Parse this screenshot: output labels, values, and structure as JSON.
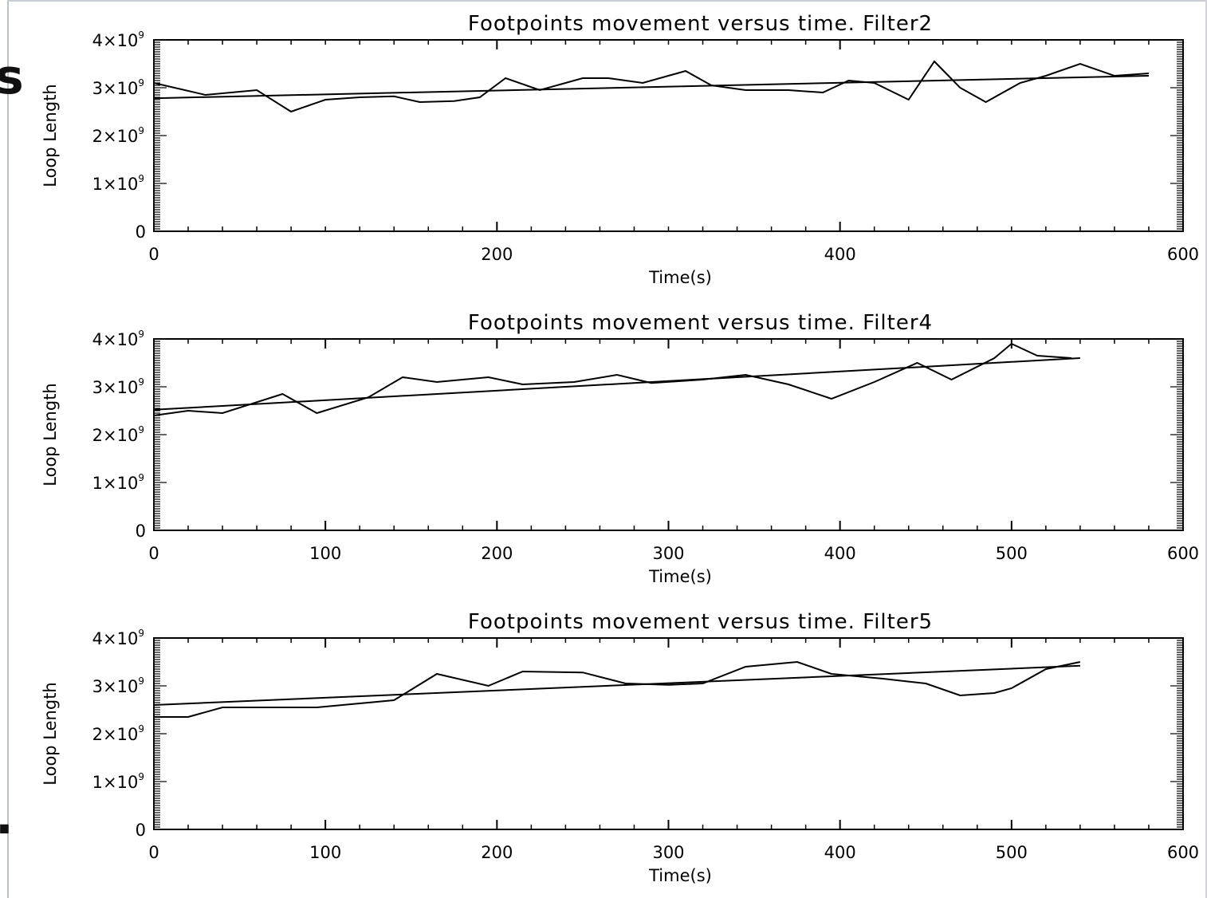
{
  "edge_glyphs": {
    "top": "s",
    "bottom": "."
  },
  "chart_data": [
    {
      "type": "line",
      "title": "Footpoints movement versus time.   Filter2",
      "xlabel": "Time(s)",
      "ylabel": "Loop Length",
      "xlim": [
        0,
        600
      ],
      "ylim": [
        0,
        4000000000.0
      ],
      "xticks": [
        0,
        200,
        400,
        600
      ],
      "yticks": [
        {
          "value": 0,
          "mantissa": "0",
          "exp": ""
        },
        {
          "value": 1000000000.0,
          "mantissa": "1×10",
          "exp": "9"
        },
        {
          "value": 2000000000.0,
          "mantissa": "2×10",
          "exp": "9"
        },
        {
          "value": 3000000000.0,
          "mantissa": "3×10",
          "exp": "9"
        },
        {
          "value": 4000000000.0,
          "mantissa": "4×10",
          "exp": "9"
        }
      ],
      "grid": false,
      "series": [
        {
          "x": [
            0,
            30,
            60,
            80,
            100,
            120,
            140,
            155,
            175,
            190,
            205,
            225,
            250,
            265,
            285,
            310,
            325,
            345,
            370,
            390,
            405,
            420,
            440,
            455,
            470,
            485,
            505,
            520,
            540,
            560,
            580
          ],
          "y": [
            3100000000.0,
            2850000000.0,
            2950000000.0,
            2500000000.0,
            2750000000.0,
            2800000000.0,
            2820000000.0,
            2700000000.0,
            2720000000.0,
            2800000000.0,
            3200000000.0,
            2950000000.0,
            3200000000.0,
            3200000000.0,
            3100000000.0,
            3350000000.0,
            3050000000.0,
            2950000000.0,
            2950000000.0,
            2900000000.0,
            3150000000.0,
            3100000000.0,
            2750000000.0,
            3550000000.0,
            3000000000.0,
            2700000000.0,
            3100000000.0,
            3250000000.0,
            3500000000.0,
            3250000000.0,
            3300000000.0
          ]
        },
        {
          "x": [
            0,
            580
          ],
          "y": [
            2780000000.0,
            3250000000.0
          ]
        }
      ]
    },
    {
      "type": "line",
      "title": "Footpoints movement versus time.   Filter4",
      "xlabel": "Time(s)",
      "ylabel": "Loop Length",
      "xlim": [
        0,
        600
      ],
      "ylim": [
        0,
        4000000000.0
      ],
      "xticks": [
        0,
        100,
        200,
        300,
        400,
        500,
        600
      ],
      "yticks": [
        {
          "value": 0,
          "mantissa": "0",
          "exp": ""
        },
        {
          "value": 1000000000.0,
          "mantissa": "1×10",
          "exp": "9"
        },
        {
          "value": 2000000000.0,
          "mantissa": "2×10",
          "exp": "9"
        },
        {
          "value": 3000000000.0,
          "mantissa": "3×10",
          "exp": "9"
        },
        {
          "value": 4000000000.0,
          "mantissa": "4×10",
          "exp": "9"
        }
      ],
      "grid": false,
      "series": [
        {
          "x": [
            0,
            20,
            40,
            75,
            95,
            125,
            145,
            165,
            195,
            215,
            245,
            270,
            290,
            320,
            345,
            370,
            395,
            420,
            445,
            465,
            490,
            500,
            515,
            535
          ],
          "y": [
            2400000000.0,
            2500000000.0,
            2450000000.0,
            2850000000.0,
            2450000000.0,
            2780000000.0,
            3200000000.0,
            3100000000.0,
            3200000000.0,
            3050000000.0,
            3100000000.0,
            3250000000.0,
            3080000000.0,
            3150000000.0,
            3250000000.0,
            3050000000.0,
            2750000000.0,
            3100000000.0,
            3500000000.0,
            3150000000.0,
            3600000000.0,
            3900000000.0,
            3650000000.0,
            3600000000.0
          ]
        },
        {
          "x": [
            0,
            540
          ],
          "y": [
            2520000000.0,
            3600000000.0
          ]
        }
      ]
    },
    {
      "type": "line",
      "title": "Footpoints movement versus time.   Filter5",
      "xlabel": "Time(s)",
      "ylabel": "Loop Length",
      "xlim": [
        0,
        600
      ],
      "ylim": [
        0,
        4000000000.0
      ],
      "xticks": [
        0,
        100,
        200,
        300,
        400,
        500,
        600
      ],
      "yticks": [
        {
          "value": 0,
          "mantissa": "0",
          "exp": ""
        },
        {
          "value": 1000000000.0,
          "mantissa": "1×10",
          "exp": "9"
        },
        {
          "value": 2000000000.0,
          "mantissa": "2×10",
          "exp": "9"
        },
        {
          "value": 3000000000.0,
          "mantissa": "3×10",
          "exp": "9"
        },
        {
          "value": 4000000000.0,
          "mantissa": "4×10",
          "exp": "9"
        }
      ],
      "grid": false,
      "series": [
        {
          "x": [
            0,
            20,
            40,
            95,
            140,
            165,
            195,
            215,
            250,
            275,
            300,
            320,
            345,
            375,
            395,
            425,
            450,
            470,
            490,
            500,
            520,
            540
          ],
          "y": [
            2350000000.0,
            2350000000.0,
            2550000000.0,
            2550000000.0,
            2700000000.0,
            3250000000.0,
            3000000000.0,
            3300000000.0,
            3280000000.0,
            3050000000.0,
            3020000000.0,
            3050000000.0,
            3400000000.0,
            3500000000.0,
            3250000000.0,
            3150000000.0,
            3050000000.0,
            2800000000.0,
            2850000000.0,
            2950000000.0,
            3350000000.0,
            3500000000.0
          ]
        },
        {
          "x": [
            0,
            540
          ],
          "y": [
            2600000000.0,
            3420000000.0
          ]
        }
      ]
    }
  ]
}
